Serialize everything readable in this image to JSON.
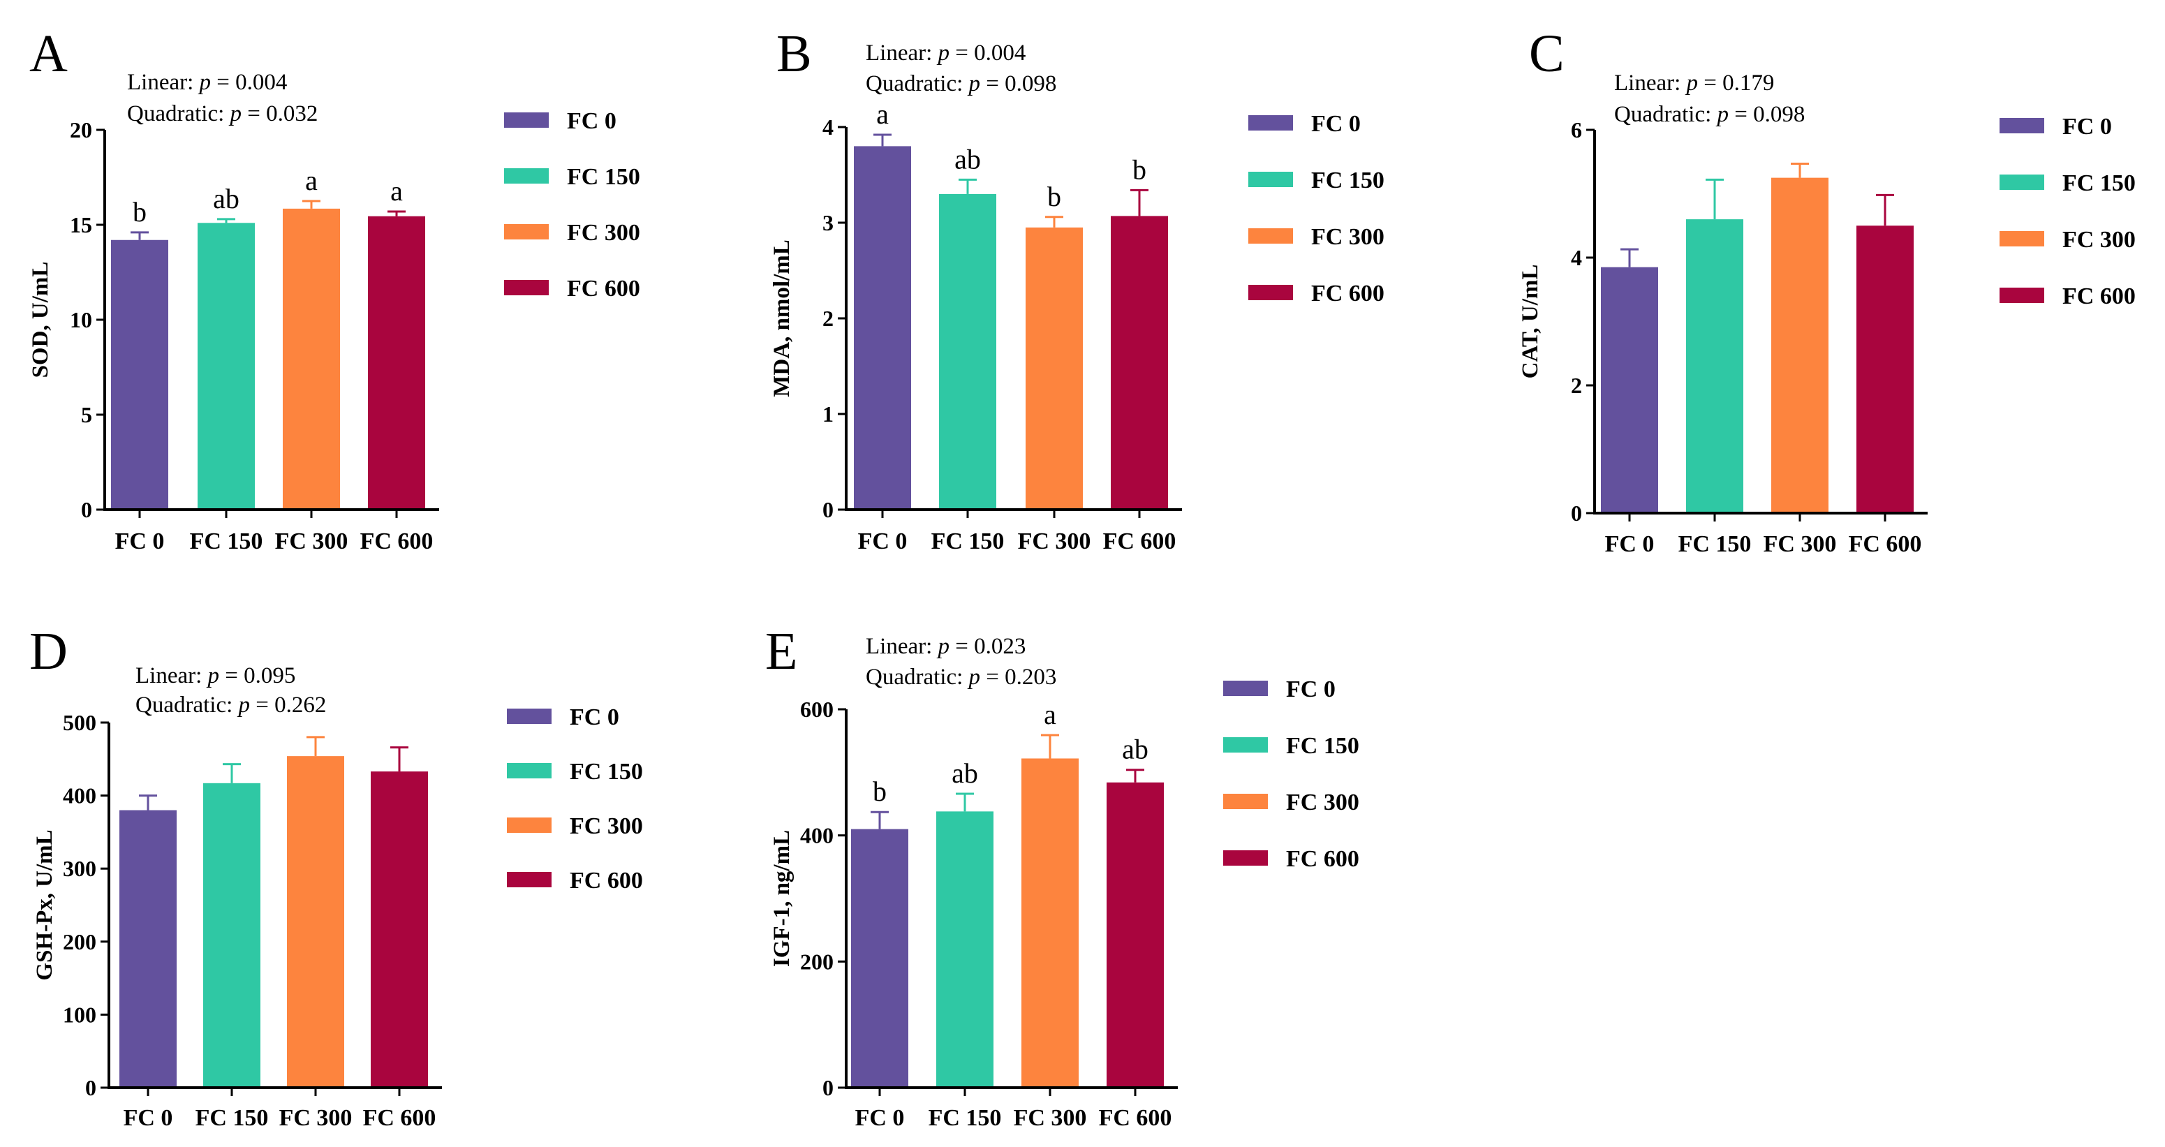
{
  "colors": [
    "#63519d",
    "#2fc8a4",
    "#fd843e",
    "#a9053e"
  ],
  "categories": [
    "FC 0",
    "FC 150",
    "FC 300",
    "FC 600"
  ],
  "legend": [
    "FC 0",
    "FC 150",
    "FC 300",
    "FC 600"
  ],
  "chart_data": [
    {
      "type": "bar",
      "panel": "A",
      "ylabel": "SOD, U/mL",
      "categories": [
        "FC 0",
        "FC 150",
        "FC 300",
        "FC 600"
      ],
      "values": [
        14.2,
        15.1,
        15.85,
        15.45
      ],
      "errors": [
        0.4,
        0.2,
        0.4,
        0.25
      ],
      "letters": [
        "b",
        "ab",
        "a",
        "a"
      ],
      "ylim": [
        0,
        20
      ],
      "yticks": [
        0,
        5,
        10,
        15,
        20
      ],
      "stats": {
        "linear_label": "Linear: ",
        "linear_p": "= 0.004",
        "quadratic_label": "Quadratic: ",
        "quadratic_p": "= 0.032",
        "p_symbol": "p"
      }
    },
    {
      "type": "bar",
      "panel": "B",
      "ylabel": "MDA, nmol/mL",
      "categories": [
        "FC 0",
        "FC 150",
        "FC 300",
        "FC 600"
      ],
      "values": [
        3.8,
        3.3,
        2.95,
        3.07
      ],
      "errors": [
        0.12,
        0.15,
        0.11,
        0.27
      ],
      "letters": [
        "a",
        "ab",
        "b",
        "b"
      ],
      "ylim": [
        0,
        4
      ],
      "yticks": [
        0,
        1,
        2,
        3,
        4
      ],
      "stats": {
        "linear_label": "Linear: ",
        "linear_p": "= 0.004",
        "quadratic_label": "Quadratic: ",
        "quadratic_p": "= 0.098",
        "p_symbol": "p"
      }
    },
    {
      "type": "bar",
      "panel": "C",
      "ylabel": "CAT, U/mL",
      "categories": [
        "FC 0",
        "FC 150",
        "FC 300",
        "FC 600"
      ],
      "values": [
        3.85,
        4.6,
        5.25,
        4.5
      ],
      "errors": [
        0.28,
        0.62,
        0.22,
        0.48
      ],
      "letters": [
        "",
        "",
        "",
        ""
      ],
      "ylim": [
        0,
        6
      ],
      "yticks": [
        0,
        2,
        4,
        6
      ],
      "stats": {
        "linear_label": "Linear: ",
        "linear_p": "= 0.179",
        "quadratic_label": "Quadratic: ",
        "quadratic_p": "= 0.098",
        "p_symbol": "p"
      }
    },
    {
      "type": "bar",
      "panel": "D",
      "ylabel": "GSH-Px, U/mL",
      "categories": [
        "FC 0",
        "FC 150",
        "FC 300",
        "FC 600"
      ],
      "values": [
        380,
        417,
        454,
        433
      ],
      "errors": [
        20,
        26,
        26,
        33
      ],
      "letters": [
        "",
        "",
        "",
        ""
      ],
      "ylim": [
        0,
        500
      ],
      "yticks": [
        0,
        100,
        200,
        300,
        400,
        500
      ],
      "stats": {
        "linear_label": "Linear: ",
        "linear_p": "= 0.095",
        "quadratic_label": "Quadratic: ",
        "quadratic_p": "= 0.262",
        "p_symbol": "p"
      }
    },
    {
      "type": "bar",
      "panel": "E",
      "ylabel": "IGF-1, ng/mL",
      "categories": [
        "FC 0",
        "FC 150",
        "FC 300",
        "FC 600"
      ],
      "values": [
        410,
        438,
        522,
        484
      ],
      "errors": [
        27,
        28,
        37,
        20
      ],
      "letters": [
        "b",
        "ab",
        "a",
        "ab"
      ],
      "ylim": [
        0,
        600
      ],
      "yticks": [
        0,
        200,
        400,
        600
      ],
      "stats": {
        "linear_label": "Linear: ",
        "linear_p": "= 0.023",
        "quadratic_label": "Quadratic: ",
        "quadratic_p": "= 0.203",
        "p_symbol": "p"
      }
    }
  ]
}
